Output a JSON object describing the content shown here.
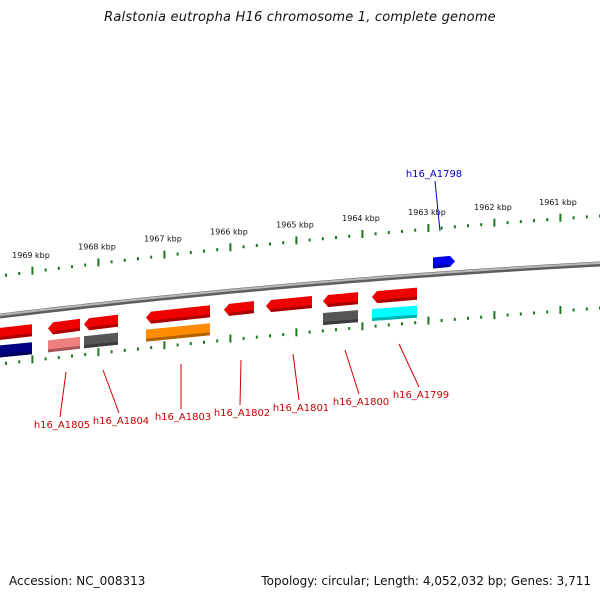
{
  "title": "Ralstonia eutropha H16 chromosome 1, complete genome",
  "footer": {
    "accession": "Accession: NC_008313",
    "info": "Topology: circular; Length: 4,052,032 bp; Genes: 3,711"
  },
  "colors": {
    "backbone": "#8a8a8a",
    "tick": "#1a7a1a",
    "label_red": "#cc0000",
    "label_blue": "#0000cc"
  },
  "kbp_labels": [
    "1969 kbp",
    "1968 kbp",
    "1967 kbp",
    "1966 kbp",
    "1965 kbp",
    "1964 kbp",
    "1963 kbp",
    "1962 kbp",
    "1961 kbp"
  ],
  "gene_labels": [
    {
      "text": "h16_A1805",
      "color": "#cc0000"
    },
    {
      "text": "h16_A1804",
      "color": "#cc0000"
    },
    {
      "text": "h16_A1803",
      "color": "#cc0000"
    },
    {
      "text": "h16_A1802",
      "color": "#cc0000"
    },
    {
      "text": "h16_A1801",
      "color": "#cc0000"
    },
    {
      "text": "h16_A1800",
      "color": "#cc0000"
    },
    {
      "text": "h16_A1799",
      "color": "#cc0000"
    },
    {
      "text": "h16_A1798",
      "color": "#0000cc"
    }
  ],
  "genes": [
    {
      "strand": "minus",
      "color": "#ee0000",
      "cog_color": "#000080"
    },
    {
      "strand": "minus",
      "color": "#ee0000",
      "cog_color": "#f08080"
    },
    {
      "strand": "minus",
      "color": "#ee0000",
      "cog_color": "#555555"
    },
    {
      "strand": "minus",
      "color": "#ee0000",
      "cog_color": "#ff8c00"
    },
    {
      "strand": "minus",
      "color": "#ee0000",
      "cog_color": ""
    },
    {
      "strand": "minus",
      "color": "#ee0000",
      "cog_color": ""
    },
    {
      "strand": "minus",
      "color": "#ee0000",
      "cog_color": "#555555"
    },
    {
      "strand": "minus",
      "color": "#ee0000",
      "cog_color": "#00ffff"
    },
    {
      "strand": "plus",
      "color": "#0000ee",
      "cog_color": ""
    }
  ]
}
